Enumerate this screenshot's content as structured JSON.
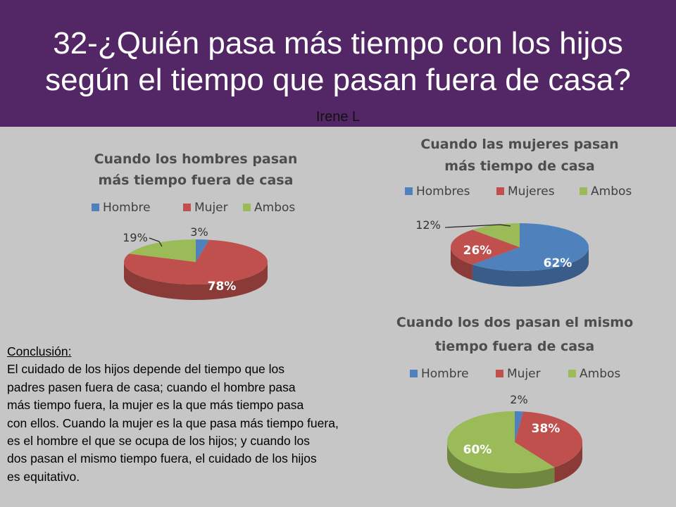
{
  "slide": {
    "title_line1": "32-¿Quién pasa más tiempo con los hijos",
    "title_line2": "según el tiempo que pasan fuera de casa?",
    "author": "Irene L"
  },
  "conclusion": {
    "heading": "Conclusión:",
    "lines": [
      "El cuidado de los hijos depende del tiempo que los",
      "padres pasen fuera de casa; cuando el hombre pasa",
      "más tiempo fuera, la mujer es la que más tiempo pasa",
      "con ellos. Cuando la mujer es la que pasa más tiempo fuera,",
      "es el hombre el que se ocupa de los hijos; y cuando los",
      "dos pasan el mismo tiempo fuera, el cuidado de los hijos",
      "es equitativo."
    ]
  },
  "colors": {
    "hombre": "#4f81bd",
    "mujer": "#c0504d",
    "ambos": "#9bbb59",
    "header": "#532766"
  },
  "chart_data": [
    {
      "type": "pie",
      "title_lines": [
        "Cuando los hombres pasan",
        "más tiempo fuera de casa"
      ],
      "categories": [
        "Hombre",
        "Mujer",
        "Ambos"
      ],
      "values": [
        3,
        78,
        19
      ],
      "labels": [
        "3%",
        "78%",
        "19%"
      ],
      "legend_position": "top"
    },
    {
      "type": "pie",
      "title_lines": [
        "Cuando las mujeres pasan",
        "más tiempo de casa"
      ],
      "categories": [
        "Hombres",
        "Mujeres",
        "Ambos"
      ],
      "values": [
        62,
        26,
        12
      ],
      "labels": [
        "62%",
        "26%",
        "12%"
      ],
      "legend_position": "top"
    },
    {
      "type": "pie",
      "title_lines": [
        "Cuando los dos pasan el mismo",
        "tiempo fuera de casa"
      ],
      "categories": [
        "Hombre",
        "Mujer",
        "Ambos"
      ],
      "values": [
        2,
        38,
        60
      ],
      "labels": [
        "2%",
        "38%",
        "60%"
      ],
      "legend_position": "top"
    }
  ]
}
